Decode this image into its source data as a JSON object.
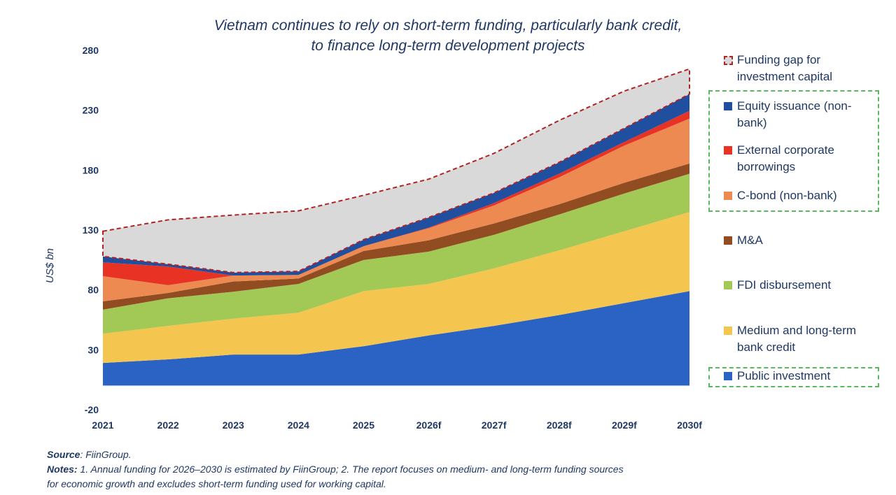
{
  "chart_data": {
    "type": "area",
    "stacked": true,
    "title": "Vietnam continues to rely on short-term funding, particularly bank credit, to finance long-term development projects",
    "title_lines": [
      "Vietnam continues to rely on short-term funding, particularly bank credit,",
      "to finance long-term development projects"
    ],
    "xlabel": "",
    "ylabel": "US$ bn",
    "ylim": [
      -20,
      280
    ],
    "yticks": [
      -20,
      30,
      80,
      130,
      180,
      230,
      280
    ],
    "categories": [
      "2021",
      "2022",
      "2023",
      "2024",
      "2025",
      "2026f",
      "2027f",
      "2028f",
      "2029f",
      "2030f"
    ],
    "legend_position": "right",
    "series": [
      {
        "name": "Public investment",
        "color": "#2b63c4",
        "values": [
          19,
          22,
          26,
          26,
          33,
          42,
          50,
          59,
          69,
          79
        ]
      },
      {
        "name": "Medium and long-term bank credit",
        "color": "#f4c54f",
        "values": [
          24.5,
          28,
          30,
          35,
          46,
          43,
          48,
          54,
          60,
          66
        ]
      },
      {
        "name": "FDI disbursement",
        "color": "#a2c856",
        "values": [
          20,
          23,
          22.5,
          24,
          26,
          27,
          28,
          30,
          31.5,
          32
        ]
      },
      {
        "name": "M&A",
        "color": "#914c22",
        "values": [
          7,
          4.5,
          8.5,
          4.5,
          7.5,
          9.5,
          9.5,
          8.5,
          9,
          8.5
        ]
      },
      {
        "name": "C-bond (non-bank)",
        "color": "#ec8a52",
        "values": [
          21,
          6.5,
          5,
          3,
          4,
          10,
          15,
          22.5,
          31,
          37.5
        ]
      },
      {
        "name": "External corporate borrowings",
        "color": "#e83324",
        "values": [
          11.5,
          15.5,
          0,
          0,
          0,
          0.5,
          2,
          3,
          3,
          6.5
        ]
      },
      {
        "name": "Equity issuance (non-bank)",
        "color": "#214f9f",
        "values": [
          5,
          2,
          2.5,
          3,
          5.5,
          8.5,
          8.5,
          9.5,
          11.5,
          14
        ]
      },
      {
        "name": "Funding gap for investment capital",
        "color": "#d9d9d9",
        "border": "#b22222",
        "values": [
          21,
          37,
          48,
          50.5,
          37,
          32,
          33,
          35,
          31,
          21
        ]
      }
    ]
  },
  "legend": [
    {
      "lines": [
        "Funding gap for",
        "investment capital"
      ]
    },
    {
      "lines": [
        "Equity issuance (non-",
        "bank)"
      ]
    },
    {
      "lines": [
        "External corporate",
        "borrowings"
      ]
    },
    {
      "lines": [
        "C-bond (non-bank)"
      ]
    },
    {
      "lines": [
        "M&A"
      ]
    },
    {
      "lines": [
        "FDI disbursement"
      ]
    },
    {
      "lines": [
        "Medium and long-term",
        "bank credit"
      ]
    },
    {
      "lines": [
        "Public investment"
      ]
    }
  ],
  "footer": {
    "source_label": "Source",
    "source_text": ": FiinGroup.",
    "notes_label": "Notes:",
    "notes_line1": " 1. Annual funding for 2026–2030 is estimated by FiinGroup; 2. The report focuses on medium- and long-term funding sources",
    "notes_line2": "for economic growth and excludes short-term funding used for working capital."
  }
}
